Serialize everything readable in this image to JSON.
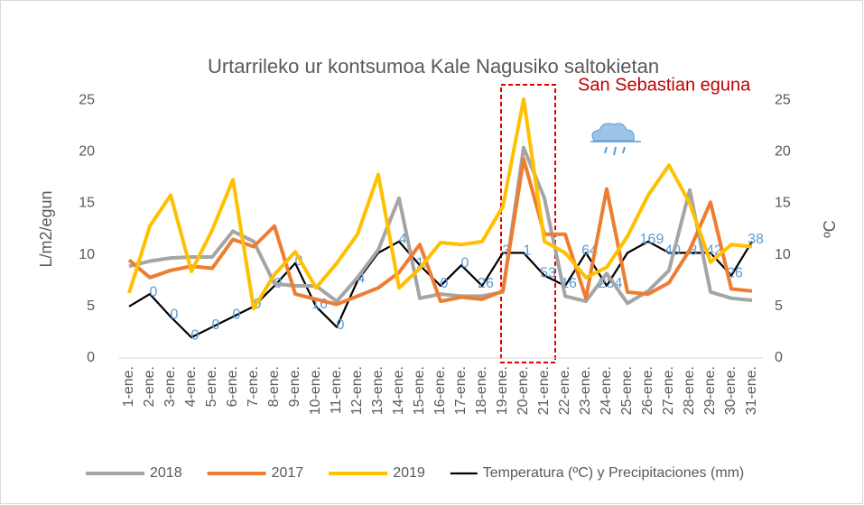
{
  "chart_data": {
    "type": "line",
    "title": "Urtarrileko ur kontsumoa Kale Nagusiko saltokietan",
    "y_label": "L/m2/egun",
    "y2_label": "ºC",
    "annotation": "San Sebastian eguna",
    "categories": [
      "1-ene.",
      "2-ene.",
      "3-ene.",
      "4-ene.",
      "5-ene.",
      "6-ene.",
      "7-ene.",
      "8-ene.",
      "9-ene.",
      "10-ene.",
      "11-ene.",
      "12-ene.",
      "13-ene.",
      "14-ene.",
      "15-ene.",
      "16-ene.",
      "17-ene.",
      "18-ene.",
      "19-ene.",
      "20-ene.",
      "21-ene.",
      "22-ene.",
      "23-ene.",
      "24-ene.",
      "25-ene.",
      "26-ene.",
      "27-ene.",
      "28-ene.",
      "29-ene.",
      "30-ene.",
      "31-ene."
    ],
    "ylim": [
      0,
      26.5
    ],
    "yticks": [
      0,
      5,
      10,
      15,
      20,
      25
    ],
    "y2lim": [
      0,
      26.5
    ],
    "y2ticks": [
      0,
      5,
      10,
      15,
      20,
      25
    ],
    "series": [
      {
        "name": "2018",
        "color": "#a5a5a5",
        "values": [
          8.9,
          9.4,
          9.7,
          9.8,
          9.8,
          12.3,
          11.3,
          7.2,
          7,
          7,
          5.5,
          7.8,
          10.5,
          15.5,
          5.8,
          6.2,
          6,
          6,
          6.4,
          20.4,
          15.5,
          6,
          5.5,
          8.2,
          5.3,
          6.5,
          8.5,
          16.3,
          6.4,
          5.8,
          5.6
        ]
      },
      {
        "name": "2017",
        "color": "#ed7d31",
        "values": [
          9.5,
          7.8,
          8.5,
          8.9,
          8.7,
          11.5,
          10.8,
          12.8,
          6.2,
          5.7,
          5.2,
          6,
          6.8,
          8.3,
          11,
          5.5,
          5.9,
          5.7,
          6.5,
          19.3,
          12,
          12,
          5.8,
          16.4,
          6.4,
          6.2,
          7.3,
          10.5,
          15.1,
          6.7,
          6.5
        ]
      },
      {
        "name": "2019",
        "color": "#ffc000",
        "values": [
          6.3,
          12.8,
          15.8,
          8.4,
          12.4,
          17.3,
          4.8,
          8.1,
          10.3,
          6.8,
          9.2,
          12,
          17.8,
          6.8,
          8.7,
          11.2,
          11,
          11.3,
          14.7,
          25.1,
          11.3,
          10.2,
          7.8,
          8.8,
          11.8,
          15.8,
          18.7,
          15,
          9.3,
          11,
          10.8
        ]
      },
      {
        "name": "Temperatura (ºC) y Precipitaciones (mm)",
        "color": "#000000",
        "axis": "y2",
        "values": [
          5,
          6.2,
          4,
          2,
          3,
          4,
          5,
          7,
          9.2,
          5,
          3,
          7.5,
          10.2,
          11.3,
          9,
          7,
          9,
          7,
          10.2,
          10.2,
          8,
          7,
          10.2,
          7,
          10.2,
          11.3,
          10.2,
          10.2,
          10.2,
          8,
          11.3
        ],
        "precipitation": [
          null,
          0,
          0,
          0,
          0,
          0,
          0,
          0,
          0,
          16,
          0,
          4,
          null,
          4,
          11,
          0,
          0,
          26,
          3,
          1,
          53,
          16,
          64,
          234,
          null,
          169,
          40,
          3,
          42,
          26,
          38
        ]
      }
    ]
  }
}
